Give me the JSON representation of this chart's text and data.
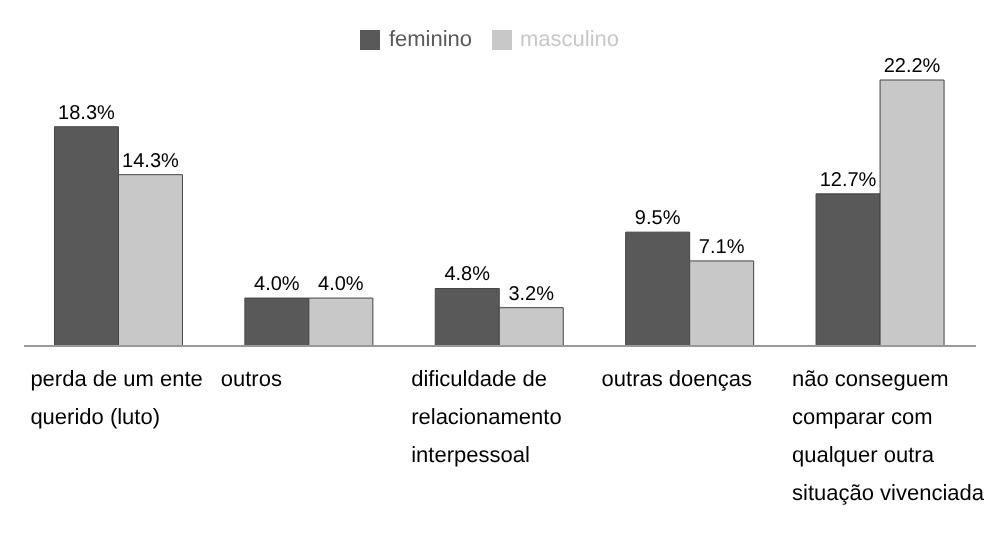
{
  "chart_data": {
    "type": "bar",
    "categories": [
      "perda de um ente querido (luto)",
      "outros",
      "dificuldade de relacionamento interpessoal",
      "outras doenças",
      "não conseguem comparar com qualquer outra situação vivenciada"
    ],
    "series": [
      {
        "name": "feminino",
        "color": "#595959",
        "values": [
          18.3,
          4.0,
          4.8,
          9.5,
          12.7
        ],
        "value_labels": [
          "18.3%",
          "4.0%",
          "4.8%",
          "9.5%",
          "12.7%"
        ]
      },
      {
        "name": "masculino",
        "color": "#c8c8c8",
        "values": [
          14.3,
          4.0,
          3.2,
          7.1,
          22.2
        ],
        "value_labels": [
          "14.3%",
          "4.0%",
          "3.2%",
          "7.1%",
          "22.2%"
        ]
      }
    ],
    "legend": "top"
  }
}
